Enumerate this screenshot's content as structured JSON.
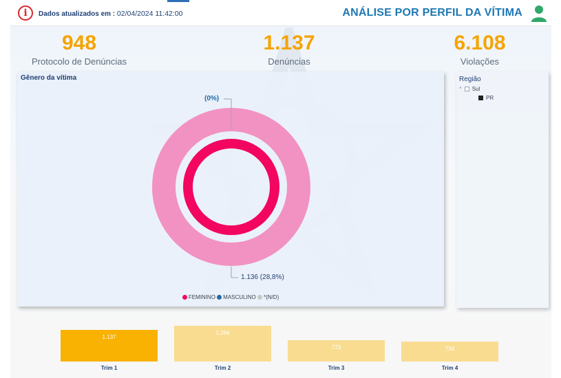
{
  "header": {
    "updated_label": "Dados atualizados em :",
    "updated_value": "02/04/2024 11:42:00",
    "page_title": "ANÁLISE POR PERFIL DA VÍTIMA"
  },
  "kpis": [
    {
      "value": "948",
      "label": "Protocolo de Denúncias"
    },
    {
      "value": "1.137",
      "label": "Denúncias"
    },
    {
      "value": "6.108",
      "label": "Violações"
    }
  ],
  "gender_chart": {
    "title": "Gênero da vítima",
    "label_top": "(0%)",
    "label_bottom": "1.136 (28,8%)",
    "legend": [
      "FEMININO",
      "MASCULINO",
      "*(N/D)"
    ],
    "colors": {
      "feminino": "#f2065f",
      "masculino": "#1f6aa8",
      "nd": "#c8c8c8",
      "outer": "#f192c2"
    }
  },
  "region_filter": {
    "title": "Região",
    "items": [
      {
        "label": "Sul",
        "checked": false
      },
      {
        "label": "PR",
        "checked": true
      }
    ]
  },
  "chart_data": {
    "type": "bar",
    "title": "",
    "categories": [
      "Trim 1",
      "Trim 2",
      "Trim 3",
      "Trim 4"
    ],
    "values": [
      1137,
      1294,
      773,
      734
    ],
    "value_labels": [
      "1.137",
      "1.294",
      "773",
      "734"
    ],
    "highlighted": "Trim 1",
    "colors": {
      "selected": "#f9b102",
      "unselected": "#f9dc90"
    }
  }
}
